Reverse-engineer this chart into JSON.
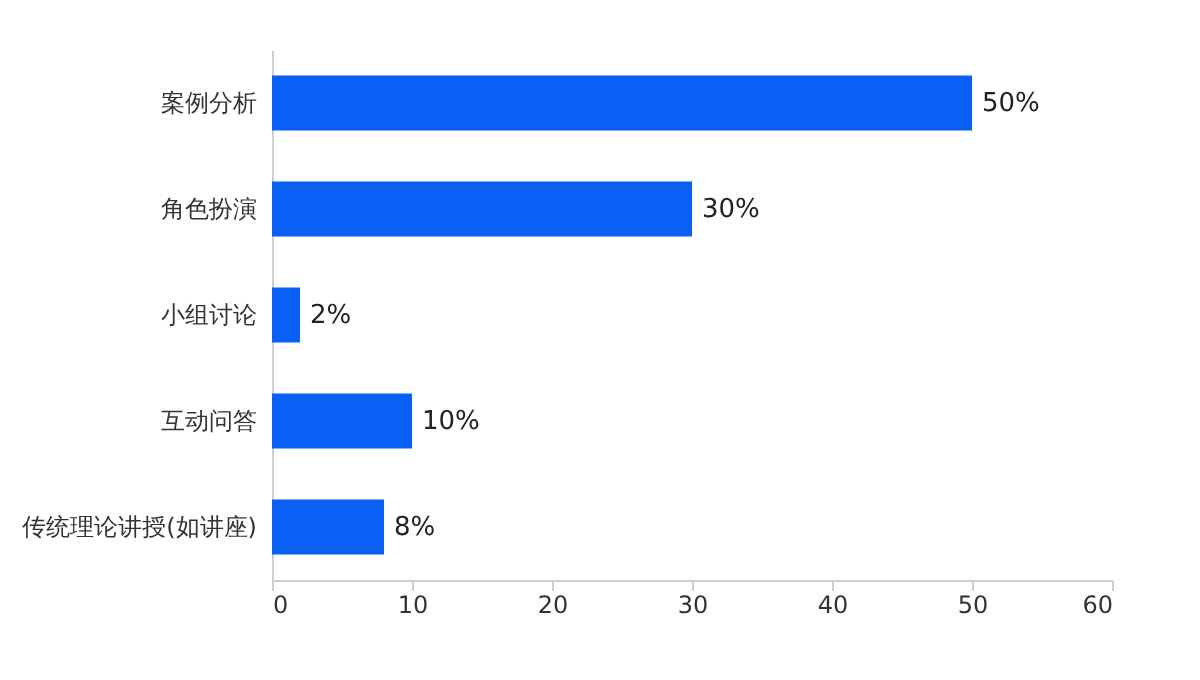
{
  "chart_data": {
    "type": "bar",
    "orientation": "horizontal",
    "categories": [
      "案例分析",
      "角色扮演",
      "小组讨论",
      "互动问答",
      "传统理论讲授(如讲座)"
    ],
    "values": [
      50,
      30,
      2,
      10,
      8
    ],
    "value_labels": [
      "50%",
      "30%",
      "2%",
      "10%",
      "8%"
    ],
    "color": "#0a5ff5",
    "xlim": [
      0,
      60
    ],
    "xticks": [
      0,
      10,
      20,
      30,
      40,
      50,
      60
    ],
    "grid": false
  }
}
